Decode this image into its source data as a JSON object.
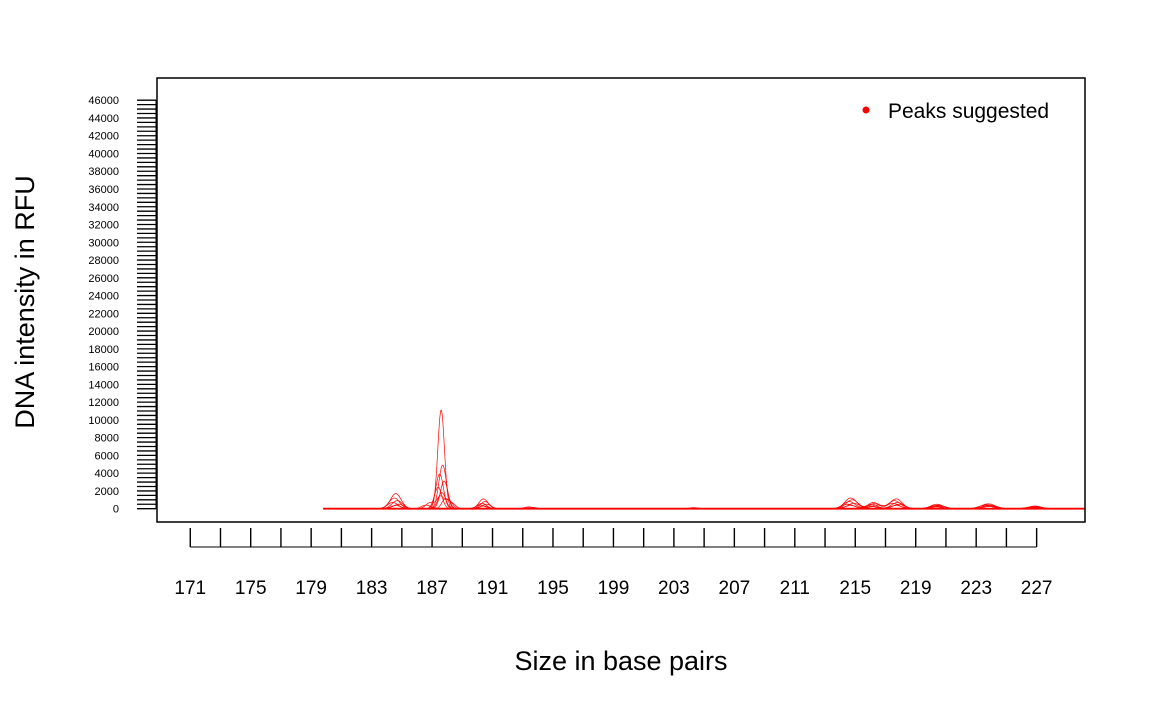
{
  "chart_data": {
    "type": "line",
    "title": "",
    "xlabel": "Size in base pairs",
    "ylabel": "DNA intensity in RFU",
    "xlim": [
      168.8,
      230.2
    ],
    "ylim": [
      -1500,
      48500
    ],
    "x_ticks": [
      171,
      173,
      175,
      177,
      179,
      181,
      183,
      185,
      187,
      189,
      191,
      193,
      195,
      197,
      199,
      201,
      203,
      205,
      207,
      209,
      211,
      213,
      215,
      217,
      219,
      221,
      223,
      225,
      227
    ],
    "x_tick_labels": [
      "171",
      "175",
      "179",
      "183",
      "187",
      "191",
      "195",
      "199",
      "203",
      "207",
      "211",
      "215",
      "219",
      "223",
      "227"
    ],
    "x_tick_label_values": [
      171,
      175,
      179,
      183,
      187,
      191,
      195,
      199,
      203,
      207,
      211,
      215,
      219,
      223,
      227
    ],
    "y_tick_labels": [
      "0",
      "2000",
      "4000",
      "6000",
      "8000",
      "10000",
      "12000",
      "14000",
      "16000",
      "18000",
      "20000",
      "22000",
      "24000",
      "26000",
      "28000",
      "30000",
      "32000",
      "34000",
      "36000",
      "38000",
      "40000",
      "42000",
      "44000",
      "46000"
    ],
    "y_tick_label_values": [
      0,
      2000,
      4000,
      6000,
      8000,
      10000,
      12000,
      14000,
      16000,
      18000,
      20000,
      22000,
      24000,
      26000,
      28000,
      30000,
      32000,
      34000,
      36000,
      38000,
      40000,
      42000,
      44000,
      46000
    ],
    "y_minor_tick_step": 500,
    "baseline_x_range": [
      179.8,
      230.2
    ],
    "line_color": "#ff0000",
    "series": [
      {
        "peaks": [
          {
            "x": 184.6,
            "h": 1700,
            "w": 0.35
          },
          {
            "x": 187.6,
            "h": 11100,
            "w": 0.22
          },
          {
            "x": 190.4,
            "h": 1100,
            "w": 0.3
          },
          {
            "x": 214.7,
            "h": 1200,
            "w": 0.4
          },
          {
            "x": 216.2,
            "h": 700,
            "w": 0.35
          },
          {
            "x": 217.7,
            "h": 1100,
            "w": 0.4
          },
          {
            "x": 220.4,
            "h": 500,
            "w": 0.4
          },
          {
            "x": 223.8,
            "h": 550,
            "w": 0.45
          },
          {
            "x": 226.9,
            "h": 300,
            "w": 0.4
          }
        ]
      },
      {
        "peaks": [
          {
            "x": 184.5,
            "h": 1200,
            "w": 0.35
          },
          {
            "x": 187.7,
            "h": 4900,
            "w": 0.25
          },
          {
            "x": 190.5,
            "h": 800,
            "w": 0.3
          },
          {
            "x": 214.8,
            "h": 1000,
            "w": 0.4
          },
          {
            "x": 216.3,
            "h": 600,
            "w": 0.35
          },
          {
            "x": 217.6,
            "h": 900,
            "w": 0.4
          },
          {
            "x": 220.5,
            "h": 400,
            "w": 0.4
          },
          {
            "x": 223.7,
            "h": 450,
            "w": 0.45
          },
          {
            "x": 226.8,
            "h": 250,
            "w": 0.4
          }
        ]
      },
      {
        "peaks": [
          {
            "x": 184.7,
            "h": 900,
            "w": 0.35
          },
          {
            "x": 187.5,
            "h": 3900,
            "w": 0.25
          },
          {
            "x": 190.3,
            "h": 600,
            "w": 0.3
          },
          {
            "x": 214.6,
            "h": 800,
            "w": 0.4
          },
          {
            "x": 216.1,
            "h": 500,
            "w": 0.35
          },
          {
            "x": 217.8,
            "h": 700,
            "w": 0.4
          },
          {
            "x": 220.3,
            "h": 350,
            "w": 0.4
          },
          {
            "x": 223.9,
            "h": 400,
            "w": 0.45
          },
          {
            "x": 227.0,
            "h": 200,
            "w": 0.4
          }
        ]
      },
      {
        "peaks": [
          {
            "x": 184.4,
            "h": 700,
            "w": 0.35
          },
          {
            "x": 187.8,
            "h": 3100,
            "w": 0.25
          },
          {
            "x": 190.6,
            "h": 500,
            "w": 0.3
          },
          {
            "x": 214.9,
            "h": 600,
            "w": 0.4
          },
          {
            "x": 216.4,
            "h": 400,
            "w": 0.35
          },
          {
            "x": 217.5,
            "h": 600,
            "w": 0.4
          },
          {
            "x": 220.6,
            "h": 300,
            "w": 0.4
          },
          {
            "x": 223.6,
            "h": 350,
            "w": 0.45
          },
          {
            "x": 226.7,
            "h": 180,
            "w": 0.4
          }
        ]
      },
      {
        "peaks": [
          {
            "x": 184.8,
            "h": 500,
            "w": 0.35
          },
          {
            "x": 187.4,
            "h": 2400,
            "w": 0.25
          },
          {
            "x": 190.2,
            "h": 400,
            "w": 0.3
          },
          {
            "x": 214.5,
            "h": 500,
            "w": 0.4
          },
          {
            "x": 216.0,
            "h": 300,
            "w": 0.35
          },
          {
            "x": 217.9,
            "h": 500,
            "w": 0.4
          },
          {
            "x": 220.2,
            "h": 250,
            "w": 0.4
          },
          {
            "x": 224.0,
            "h": 300,
            "w": 0.45
          },
          {
            "x": 226.6,
            "h": 150,
            "w": 0.4
          }
        ]
      },
      {
        "peaks": [
          {
            "x": 184.6,
            "h": 350,
            "w": 0.35
          },
          {
            "x": 187.65,
            "h": 1800,
            "w": 0.25
          },
          {
            "x": 190.4,
            "h": 300,
            "w": 0.3
          },
          {
            "x": 214.7,
            "h": 350,
            "w": 0.4
          },
          {
            "x": 216.2,
            "h": 250,
            "w": 0.35
          },
          {
            "x": 217.7,
            "h": 350,
            "w": 0.4
          },
          {
            "x": 220.4,
            "h": 200,
            "w": 0.4
          },
          {
            "x": 223.8,
            "h": 250,
            "w": 0.45
          },
          {
            "x": 226.9,
            "h": 120,
            "w": 0.4
          }
        ]
      },
      {
        "peaks": [
          {
            "x": 186.9,
            "h": 700,
            "w": 0.3
          },
          {
            "x": 187.55,
            "h": 1300,
            "w": 0.22
          },
          {
            "x": 188.1,
            "h": 900,
            "w": 0.25
          },
          {
            "x": 193.4,
            "h": 200,
            "w": 0.3
          },
          {
            "x": 204.3,
            "h": 120,
            "w": 0.3
          }
        ]
      },
      {
        "peaks": [
          {
            "x": 186.6,
            "h": 400,
            "w": 0.3
          },
          {
            "x": 187.85,
            "h": 1000,
            "w": 0.22
          },
          {
            "x": 188.3,
            "h": 600,
            "w": 0.25
          },
          {
            "x": 193.6,
            "h": 150,
            "w": 0.3
          }
        ]
      }
    ]
  },
  "legend": {
    "label": "Peaks suggested",
    "marker_color": "#ff0000",
    "position": "top-right"
  }
}
